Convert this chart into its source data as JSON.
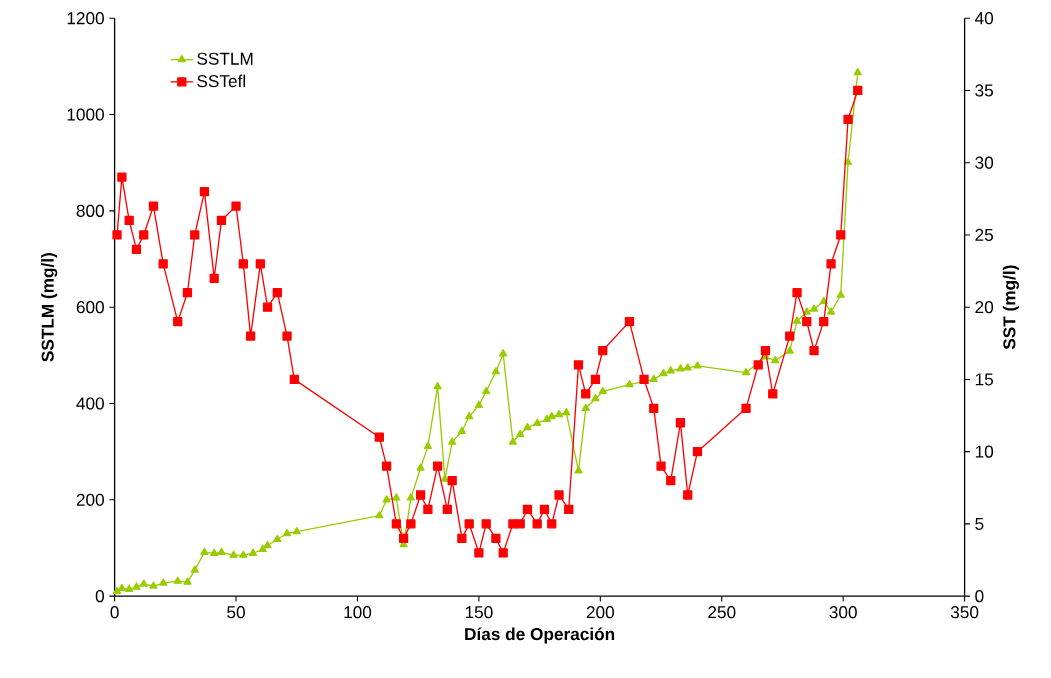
{
  "chart_data": {
    "type": "line",
    "xlabel": "Días de Operación",
    "ylabel": "SSTLM (mg/l)",
    "y2label": "SST (mg/l)",
    "xlim": [
      0,
      350
    ],
    "xticks": [
      0,
      50,
      100,
      150,
      200,
      250,
      300,
      350
    ],
    "ylim": [
      0,
      1200
    ],
    "yticks": [
      0,
      200,
      400,
      600,
      800,
      1000,
      1200
    ],
    "y2lim": [
      0,
      40
    ],
    "y2ticks": [
      0,
      5,
      10,
      15,
      20,
      25,
      30,
      35,
      40
    ],
    "grid": false,
    "legend": "top left",
    "line_style": "solid",
    "series": [
      {
        "name": "SSTLM",
        "color": "#99cc00",
        "marker": "triangle",
        "x": [
          1,
          3,
          6,
          9,
          12,
          16,
          20,
          26,
          30,
          33,
          37,
          41,
          44,
          49,
          53,
          57,
          61,
          63,
          67,
          71,
          75,
          109,
          112,
          116,
          119,
          122,
          126,
          129,
          133,
          136,
          139,
          143,
          146,
          150,
          153,
          157,
          160,
          164,
          167,
          170,
          174,
          178,
          180,
          183,
          186,
          191,
          194,
          198,
          201,
          212,
          218,
          222,
          226,
          229,
          233,
          236,
          240,
          260,
          268,
          272,
          278,
          281,
          285,
          288,
          292,
          295,
          299,
          302,
          306
        ],
        "values": [
          10,
          16,
          14,
          19,
          25,
          21,
          27,
          31,
          29,
          54,
          91,
          89,
          91,
          85,
          85,
          89,
          97,
          105,
          118,
          130,
          134,
          167,
          200,
          204,
          107,
          204,
          266,
          311,
          435,
          243,
          320,
          342,
          373,
          396,
          425,
          466,
          503,
          320,
          336,
          350,
          359,
          367,
          373,
          377,
          381,
          260,
          390,
          410,
          425,
          439,
          null,
          450,
          462,
          468,
          472,
          474,
          478,
          464,
          497,
          489,
          509,
          571,
          590,
          596,
          612,
          590,
          625,
          901,
          1087
        ]
      },
      {
        "name": "SSTefl",
        "color": "#ff0000",
        "marker": "square",
        "axis": "y2",
        "x": [
          1,
          3,
          6,
          9,
          12,
          16,
          20,
          26,
          30,
          33,
          37,
          41,
          44,
          50,
          53,
          56,
          60,
          63,
          67,
          71,
          74,
          109,
          112,
          116,
          119,
          122,
          126,
          129,
          133,
          137,
          139,
          143,
          146,
          150,
          153,
          157,
          160,
          164,
          167,
          170,
          174,
          177,
          180,
          183,
          187,
          191,
          194,
          198,
          201,
          212,
          218,
          222,
          225,
          229,
          233,
          236,
          240,
          260,
          265,
          268,
          271,
          278,
          281,
          285,
          288,
          292,
          295,
          299,
          302,
          306
        ],
        "values": [
          25,
          29,
          26,
          24,
          25,
          27,
          23,
          19,
          21,
          25,
          28,
          22,
          26,
          27,
          23,
          18,
          23,
          20,
          21,
          18,
          15,
          11,
          9,
          5,
          4,
          5,
          7,
          6,
          9,
          6,
          8,
          4,
          5,
          3,
          5,
          4,
          3,
          5,
          5,
          6,
          5,
          6,
          5,
          7,
          6,
          16,
          14,
          15,
          17,
          19,
          15,
          13,
          9,
          8,
          12,
          7,
          10,
          13,
          16,
          17,
          14,
          18,
          21,
          19,
          17,
          19,
          23,
          25,
          33,
          35
        ]
      }
    ]
  }
}
